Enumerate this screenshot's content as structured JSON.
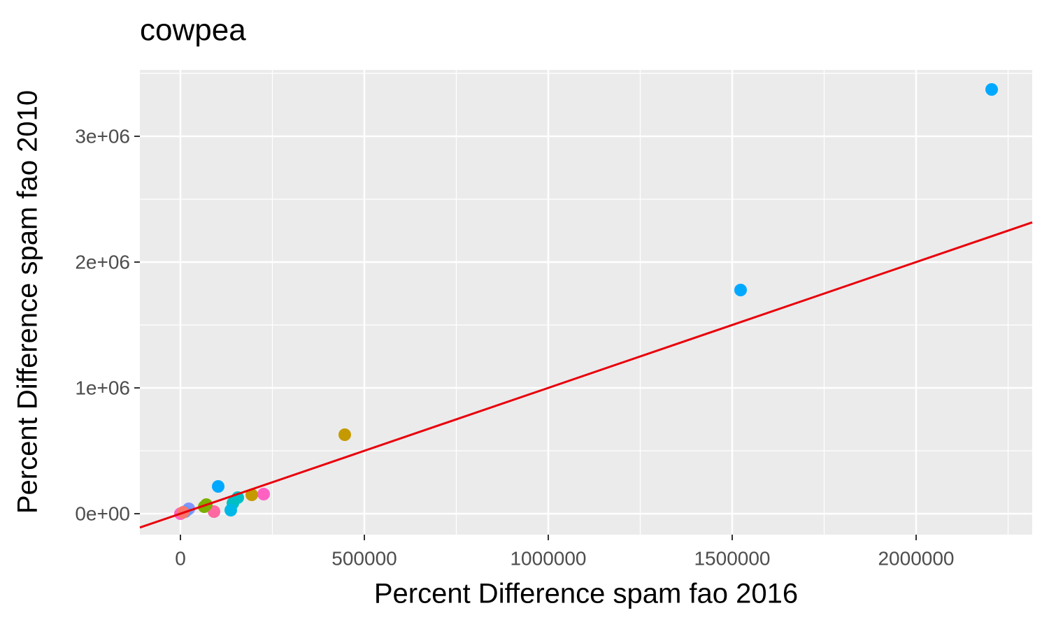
{
  "chart_data": {
    "type": "scatter",
    "title": "cowpea",
    "x_label": "Percent Difference spam fao 2016",
    "y_label": "Percent Difference spam fao 2010",
    "x": [
      2205323,
      1522814,
      446768,
      102662,
      226236,
      193916,
      155894,
      142586,
      136882,
      91255,
      70342,
      64639,
      22814,
      13308,
      0,
      7605
    ],
    "y": [
      3372222,
      1777778,
      627778,
      216667,
      155556,
      150000,
      127778,
      83333,
      27778,
      16667,
      72222,
      55556,
      38889,
      16667,
      0,
      11111
    ],
    "colors": [
      "#00a9ff",
      "#00a9ff",
      "#c49a00",
      "#00a9ff",
      "#ff61c3",
      "#c49a00",
      "#00bfc4",
      "#00bfc4",
      "#00b8e7",
      "#ff68a1",
      "#7cae00",
      "#7cae00",
      "#8494ff",
      "#619cff",
      "#ff61c3",
      "#f8766d"
    ],
    "abline": {
      "slope": 1,
      "intercept": 0,
      "color": "#e8000b"
    },
    "xlim": [
      -110266,
      2315589
    ],
    "ylim": [
      -166667,
      3527778
    ],
    "xticks": [
      0,
      500000,
      1000000,
      1500000,
      2000000
    ],
    "yticks": [
      {
        "value": 0,
        "label": "0e+00"
      },
      {
        "value": 1000000,
        "label": "1e+06"
      },
      {
        "value": 2000000,
        "label": "2e+06"
      },
      {
        "value": 3000000,
        "label": "3e+06"
      }
    ],
    "xminor": [
      250000,
      750000,
      1250000,
      1750000,
      2250000
    ],
    "yminor": [
      500000,
      1500000,
      2500000,
      3500000
    ],
    "grid": true
  }
}
